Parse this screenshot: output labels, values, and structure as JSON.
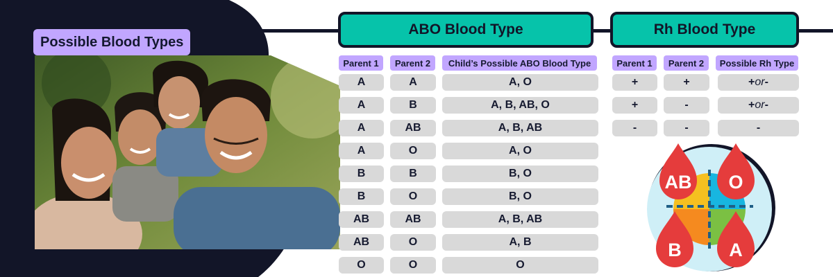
{
  "photo": {
    "title": "Possible Blood Types"
  },
  "abo": {
    "header": "ABO Blood Type",
    "columns": [
      "Parent 1",
      "Parent 2",
      "Child’s Possible ABO Blood Type"
    ],
    "rows": [
      [
        "A",
        "A",
        "A, O"
      ],
      [
        "A",
        "B",
        "A, B, AB, O"
      ],
      [
        "A",
        "AB",
        "A, B, AB"
      ],
      [
        "A",
        "O",
        "A, O"
      ],
      [
        "B",
        "B",
        "B, O"
      ],
      [
        "B",
        "O",
        "B, O"
      ],
      [
        "AB",
        "AB",
        "A, B, AB"
      ],
      [
        "AB",
        "O",
        "A, B"
      ],
      [
        "O",
        "O",
        "O"
      ]
    ]
  },
  "rh": {
    "header": "Rh Blood Type",
    "columns": [
      "Parent 1",
      "Parent 2",
      "Possible Rh Type"
    ],
    "rows": [
      [
        "+",
        "+",
        "+ or -"
      ],
      [
        "+",
        "-",
        "+ or -"
      ],
      [
        "-",
        "-",
        "-"
      ]
    ],
    "or_word": "or"
  },
  "icon": {
    "labels": [
      "AB",
      "O",
      "B",
      "A"
    ],
    "quadrant_colors": [
      "#f5c020",
      "#18b6e0",
      "#f58a1f",
      "#7bc043"
    ],
    "drop_color": "#e53c3c",
    "circle_color": "#cfeff7"
  },
  "colors": {
    "dark": "#121528",
    "teal": "#06c3aa",
    "lavender": "#c1a6ff",
    "cell": "#d9d9d9"
  }
}
